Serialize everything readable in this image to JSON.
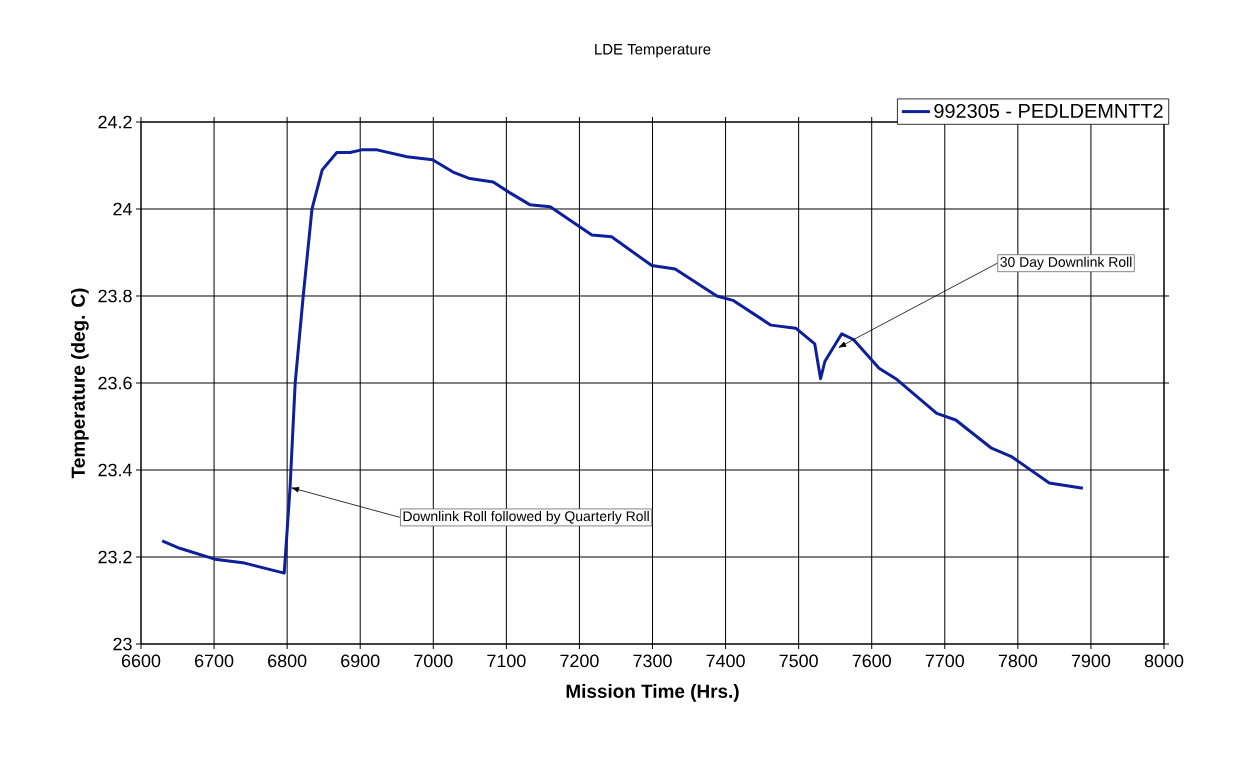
{
  "chart_data": {
    "type": "line",
    "title": "LDE Temperature",
    "xlabel": "Mission Time (Hrs.)",
    "ylabel": "Temperature (deg. C)",
    "xlim": [
      6600,
      8000
    ],
    "xticks": [
      6600,
      6700,
      6800,
      6900,
      7000,
      7100,
      7200,
      7300,
      7400,
      7500,
      7600,
      7700,
      7800,
      7900,
      8000
    ],
    "ylim": [
      23,
      24.2
    ],
    "yticks": [
      23,
      23.2,
      23.4,
      23.6,
      23.8,
      24,
      24.2
    ],
    "grid": true,
    "legend": "top right",
    "marker": "none",
    "line_style": "solid",
    "annotations": [
      {
        "text": "Downlink Roll followed by Quarterly Roll",
        "x": 6804,
        "y": 23.36
      },
      {
        "text": "30 Day Downlink Roll",
        "x": 7553,
        "y": 23.68
      }
    ],
    "series": [
      {
        "name": "992305 - PEDLDEMNTT2",
        "color": "#0d1f9a",
        "x": [
          6629,
          6653,
          6701,
          6742,
          6796,
          6804,
          6811,
          6822,
          6834,
          6848,
          6868,
          6886,
          6902,
          6923,
          6964,
          6999,
          7027,
          7050,
          7082,
          7105,
          7132,
          7160,
          7217,
          7244,
          7299,
          7331,
          7388,
          7410,
          7462,
          7496,
          7522,
          7530,
          7536,
          7559,
          7575,
          7610,
          7633,
          7689,
          7715,
          7764,
          7792,
          7843,
          7889
        ],
        "values": [
          23.237,
          23.22,
          23.195,
          23.186,
          23.163,
          23.36,
          23.6,
          23.8,
          24.0,
          24.09,
          24.13,
          24.13,
          24.136,
          24.136,
          24.12,
          24.113,
          24.085,
          24.07,
          24.062,
          24.037,
          24.01,
          24.005,
          23.94,
          23.936,
          23.87,
          23.862,
          23.8,
          23.79,
          23.733,
          23.726,
          23.69,
          23.61,
          23.65,
          23.713,
          23.7,
          23.634,
          23.61,
          23.53,
          23.515,
          23.45,
          23.43,
          23.37,
          23.358
        ]
      }
    ]
  }
}
